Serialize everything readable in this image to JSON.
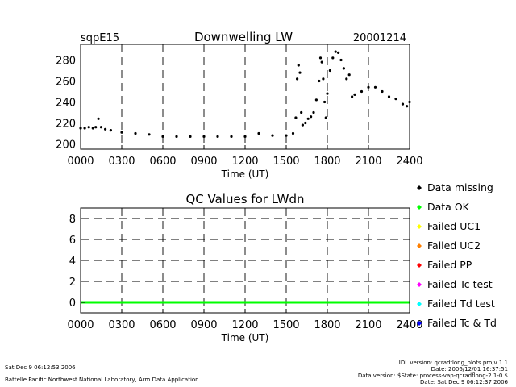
{
  "header": {
    "site": "sqpE15",
    "date": "20001214"
  },
  "chart_data": [
    {
      "type": "scatter",
      "title": "Downwelling LW",
      "xlabel": "Time (UT)",
      "ylabel": "",
      "xlim": [
        0,
        2400
      ],
      "ylim": [
        195,
        295
      ],
      "x_ticks": [
        0,
        300,
        600,
        900,
        1200,
        1500,
        1800,
        2100,
        2400
      ],
      "x_tick_labels": [
        "0000",
        "0300",
        "0600",
        "0900",
        "1200",
        "1500",
        "1800",
        "2100",
        "2400"
      ],
      "y_ticks": [
        200,
        220,
        240,
        260,
        280
      ],
      "y_tick_labels": [
        "200",
        "220",
        "240",
        "260",
        "280"
      ],
      "grid": true,
      "series": [
        {
          "name": "Downwelling LW",
          "color": "#000000",
          "x": [
            0,
            30,
            60,
            90,
            110,
            130,
            150,
            180,
            220,
            300,
            400,
            500,
            600,
            700,
            800,
            900,
            1000,
            1100,
            1200,
            1300,
            1400,
            1500,
            1550,
            1570,
            1580,
            1590,
            1600,
            1610,
            1620,
            1640,
            1660,
            1680,
            1700,
            1720,
            1740,
            1750,
            1760,
            1770,
            1780,
            1790,
            1800,
            1820,
            1840,
            1860,
            1880,
            1900,
            1920,
            1940,
            1960,
            1980,
            2000,
            2050,
            2100,
            2150,
            2200,
            2250,
            2300,
            2350,
            2380,
            2400
          ],
          "y": [
            215,
            215,
            216,
            215,
            216,
            224,
            216,
            214,
            213,
            211,
            210,
            209,
            207,
            207,
            207,
            207,
            207,
            207,
            207,
            210,
            208,
            208,
            210,
            225,
            262,
            275,
            268,
            230,
            218,
            220,
            224,
            226,
            230,
            242,
            260,
            282,
            278,
            262,
            240,
            225,
            248,
            270,
            282,
            288,
            287,
            280,
            272,
            262,
            266,
            245,
            247,
            250,
            254,
            254,
            250,
            245,
            243,
            238,
            236,
            240
          ]
        }
      ]
    },
    {
      "type": "line",
      "title": "QC Values for LWdn",
      "xlabel": "Time (UT)",
      "ylabel": "",
      "xlim": [
        0,
        2400
      ],
      "ylim": [
        -1,
        9
      ],
      "x_ticks": [
        0,
        300,
        600,
        900,
        1200,
        1500,
        1800,
        2100,
        2400
      ],
      "x_tick_labels": [
        "0000",
        "0300",
        "0600",
        "0900",
        "1200",
        "1500",
        "1800",
        "2100",
        "2400"
      ],
      "y_ticks": [
        0,
        2,
        4,
        6,
        8
      ],
      "y_tick_labels": [
        "0",
        "2",
        "4",
        "6",
        "8"
      ],
      "grid": true,
      "series": [
        {
          "name": "QC LWdn",
          "color": "#00ff00",
          "x": [
            0,
            2400
          ],
          "y": [
            0,
            0
          ]
        }
      ]
    }
  ],
  "legend": [
    {
      "label": "Data missing",
      "color": "#000000"
    },
    {
      "label": "Data OK",
      "color": "#00ff00"
    },
    {
      "label": "Failed UC1",
      "color": "#ffff00"
    },
    {
      "label": "Failed UC2",
      "color": "#ff8000"
    },
    {
      "label": "Failed PP",
      "color": "#ff0000"
    },
    {
      "label": "Failed Tc test",
      "color": "#ff00ff"
    },
    {
      "label": "Failed Td test",
      "color": "#00ffff"
    },
    {
      "label": "Failed Tc & Td",
      "color": "#0000ff"
    }
  ],
  "footer": {
    "left_line1": "Sat Dec  9 06:12:53 2006",
    "left_line2": "Battelle Pacific Northwest National Laboratory, Arm Data Application",
    "right_line1": "IDL version: qcradflong_plots.pro,v 1.1",
    "right_line2": "Date: 2006/12/01 16:37:51",
    "right_line3": "Data version: $State: process-vap-qcradflong-2.1-0 $",
    "right_line4": "Date: Sat Dec  9 06:12:37 2006"
  }
}
